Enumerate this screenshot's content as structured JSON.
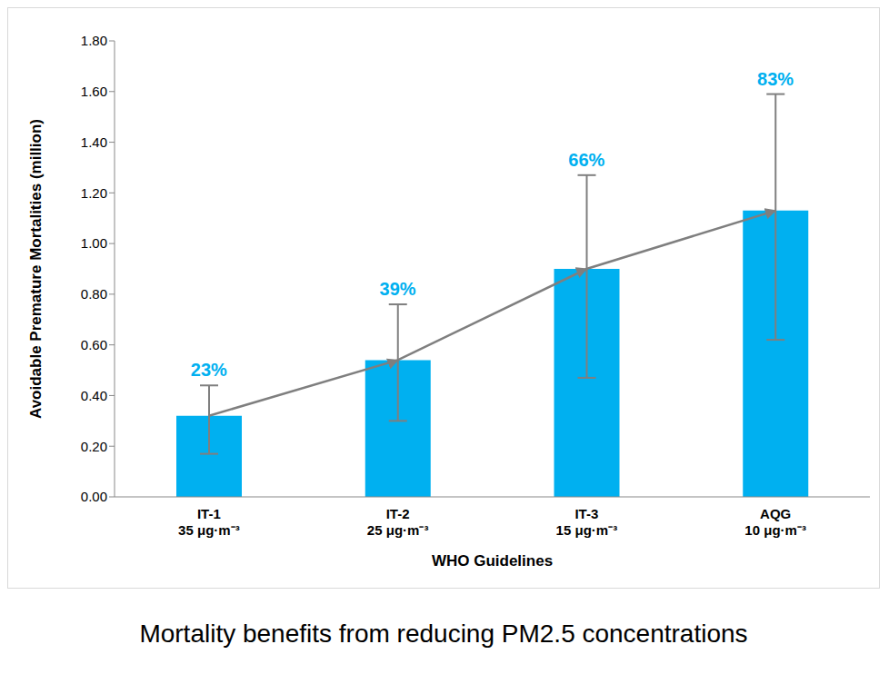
{
  "chart_data": {
    "type": "bar",
    "title": "Mortality benefits from reducing PM2.5 concentrations",
    "x_label": "WHO Guidelines",
    "y_label": "Avoidable Premature Mortalities (million)",
    "categories": [
      "IT-1",
      "IT-2",
      "IT-3",
      "AQG"
    ],
    "category_sublabels": [
      "35 μg·m⁻³",
      "25 μg·m⁻³",
      "15 μg·m⁻³",
      "10 μg·m⁻³"
    ],
    "values": [
      0.32,
      0.54,
      0.9,
      1.13
    ],
    "error_low": [
      0.17,
      0.3,
      0.47,
      0.62
    ],
    "error_high": [
      0.44,
      0.76,
      1.27,
      1.59
    ],
    "percent_labels": [
      "23%",
      "39%",
      "66%",
      "83%"
    ],
    "color": "#00b0f0",
    "ylim": [
      0,
      1.8
    ],
    "yticks": [
      {
        "value": 0,
        "label": "0.00"
      },
      {
        "value": 0.2,
        "label": "0.20"
      },
      {
        "value": 0.4,
        "label": "0.40"
      },
      {
        "value": 0.6,
        "label": "0.60"
      },
      {
        "value": 0.8,
        "label": "0.80"
      },
      {
        "value": 1,
        "label": "1.00"
      },
      {
        "value": 1.2,
        "label": "1.20"
      },
      {
        "value": 1.4,
        "label": "1.40"
      },
      {
        "value": 1.6,
        "label": "1.60"
      },
      {
        "value": 1.8,
        "label": "1.80"
      }
    ],
    "grid": false
  }
}
